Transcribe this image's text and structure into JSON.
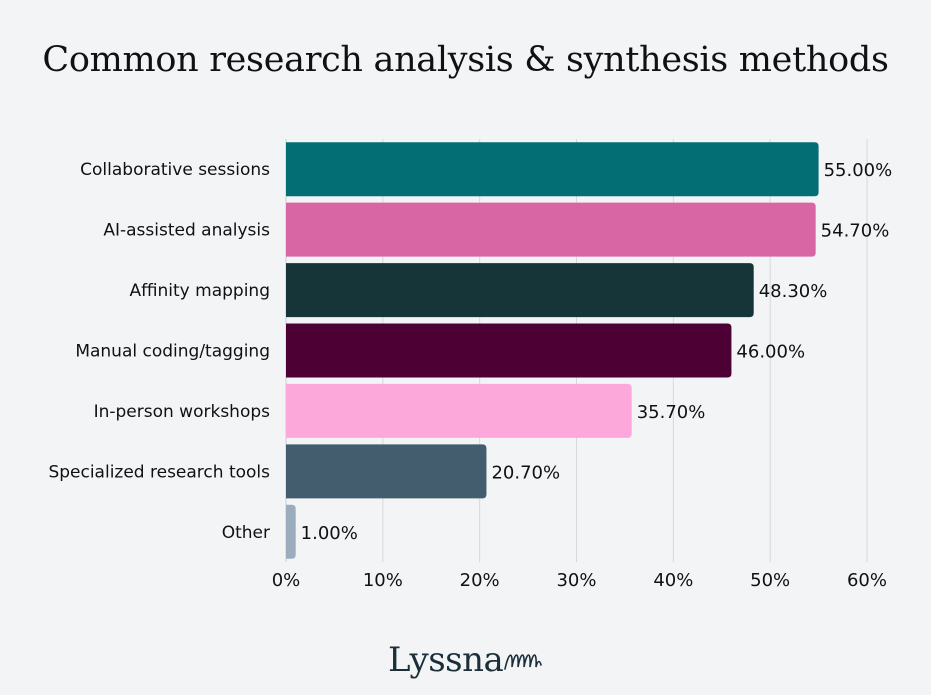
{
  "title": "Common research analysis & synthesis methods",
  "logo_text": "Lyssna",
  "chart_data": {
    "type": "bar",
    "orientation": "horizontal",
    "categories": [
      "Collaborative sessions",
      "AI-assisted analysis",
      "Affinity mapping",
      "Manual coding/tagging",
      "In-person workshops",
      "Specialized research tools",
      "Other"
    ],
    "values": [
      55.0,
      54.7,
      48.3,
      46.0,
      35.7,
      20.7,
      1.0
    ],
    "labels": [
      "55.00%",
      "54.70%",
      "48.30%",
      "46.00%",
      "35.70%",
      "20.70%",
      "1.00%"
    ],
    "colors": [
      "#036e73",
      "#d966a4",
      "#163538",
      "#4d0033",
      "#fca8da",
      "#435d6e",
      "#9bacbc"
    ],
    "xticks": [
      "0%",
      "10%",
      "20%",
      "30%",
      "40%",
      "50%",
      "60%"
    ],
    "xlim": [
      0,
      60
    ],
    "grid": true,
    "legend": "none"
  }
}
